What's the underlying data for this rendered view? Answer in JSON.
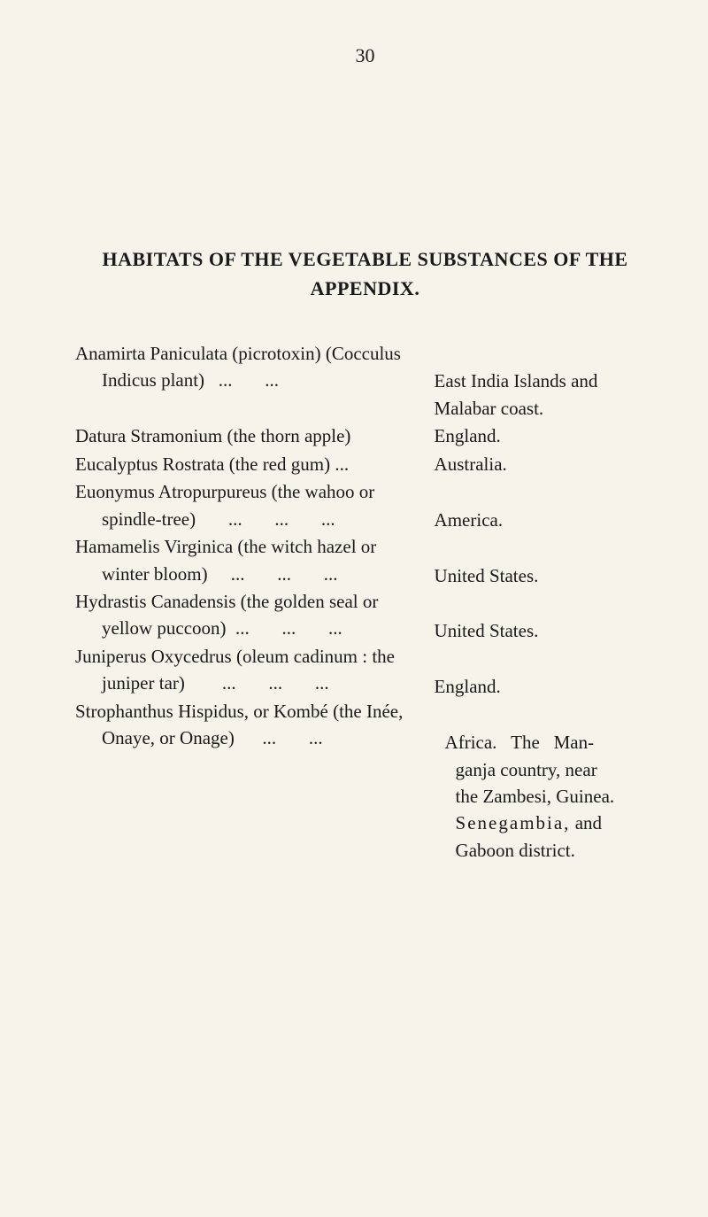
{
  "page_number": "30",
  "heading_line1": "HABITATS OF THE VEGETABLE SUBSTANCES OF THE",
  "heading_line2": "APPENDIX.",
  "entries": {
    "e1": {
      "left": "Anamirta Paniculata (picrotoxin) (Cocculus Indicus plant)   ...       ...",
      "right": "East India Islands and Malabar coast."
    },
    "e2": {
      "left": "Datura Stramonium (the thorn apple)",
      "right": "England."
    },
    "e3": {
      "left": "Eucalyptus Rostrata (the red gum) ...",
      "right": "Australia."
    },
    "e4": {
      "left": "Euonymus Atropurpureus (the wahoo or spindle-tree)       ...       ...       ...",
      "right": "America."
    },
    "e5": {
      "left": "Hamamelis Virginica (the witch hazel or winter bloom)     ...       ...       ...",
      "right": "United States."
    },
    "e6": {
      "left": "Hydrastis Canadensis (the golden seal or yellow puccoon)  ...       ...       ...",
      "right": "United States."
    },
    "e7": {
      "left": "Juniperus Oxycedrus (oleum cadinum : the juniper tar)        ...       ...       ...",
      "right": "England."
    },
    "e8": {
      "left": "Strophanthus Hispidus, or Kombé (the Inée, Onaye, or Onage)      ...       ...",
      "right": "Africa. The Man-ganja country, near the Zambesi, Guinea. Senegambia, and Gaboon district."
    }
  }
}
